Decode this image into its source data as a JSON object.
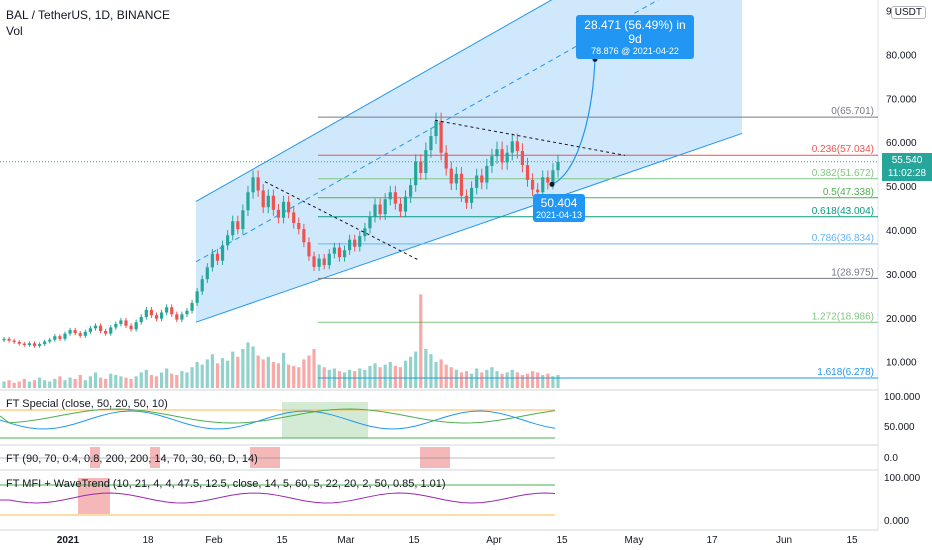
{
  "header": {
    "symbol_line": "BAL / TetherUS, 1D, BINANCE",
    "volume_label": "Vol",
    "currency_button": "USDT"
  },
  "colors": {
    "up": "#26a69a",
    "down": "#ef5350",
    "channel_fill": "#bbdefb",
    "channel_line": "#2196f3",
    "callout": "#2196f3"
  },
  "last_price": {
    "value": "55.540",
    "countdown": "11:02:28"
  },
  "callouts": {
    "target": {
      "line1": "28.471 (56.49%) in 9d",
      "line2": "78.876 @ 2021-04-22"
    },
    "entry": {
      "line1": "50.404",
      "line2": "2021-04-13"
    }
  },
  "indicators": {
    "ind1": "FT Special (close, 50, 20, 50, 10)",
    "ind2": "FT (90, 70, 0.4, 0.8, 200, 200, 14, 70, 30, 60, D, 14)",
    "ind3": "FT MFI + WaveTrend (10, 21, 4, 4, 47.5, 12.5, close, 14, 5, 60, 5, 22, 20, 2, 50, 0.85, 1.01)"
  },
  "price_axis_ticks": [
    "90",
    "80.000",
    "70.000",
    "60.000",
    "50.000",
    "40.000",
    "30.000",
    "20.000",
    "10.000"
  ],
  "ind_axis_ticks": {
    "ind1": [
      "100.000",
      "50.000"
    ],
    "ind2": [
      "0.0"
    ],
    "ind3": [
      "100.000",
      "0.000"
    ]
  },
  "time_axis": [
    "2021",
    "18",
    "Feb",
    "15",
    "Mar",
    "15",
    "Apr",
    "15",
    "May",
    "17",
    "Jun",
    "15"
  ],
  "chart_data": {
    "type": "candlestick",
    "fib_levels": [
      {
        "ratio": "0",
        "price": 65.701,
        "label": "0(65.701)",
        "color": "#787b86"
      },
      {
        "ratio": "0.236",
        "price": 57.034,
        "label": "0.236(57.034)",
        "color": "#ef5350"
      },
      {
        "ratio": "0.382",
        "price": 51.672,
        "label": "0.382(51.672)",
        "color": "#81c784"
      },
      {
        "ratio": "0.5",
        "price": 47.338,
        "label": "0.5(47.338)",
        "color": "#4caf50"
      },
      {
        "ratio": "0.618",
        "price": 43.004,
        "label": "0.618(43.004)",
        "color": "#089981"
      },
      {
        "ratio": "0.786",
        "price": 36.834,
        "label": "0.786(36.834)",
        "color": "#64b5f6"
      },
      {
        "ratio": "1",
        "price": 28.975,
        "label": "1(28.975)",
        "color": "#787b86"
      },
      {
        "ratio": "1.272",
        "price": 18.986,
        "label": "1.272(18.986)",
        "color": "#81c784"
      },
      {
        "ratio": "1.618",
        "price": 6.278,
        "label": "1.618(6.278)",
        "color": "#2196f3"
      }
    ],
    "projection": {
      "from_price": 50.404,
      "from_date": "2021-04-13",
      "to_price": 78.876,
      "to_date": "2021-04-22",
      "change": 28.471,
      "change_pct": 56.49,
      "days": 9
    },
    "closes": [
      15.2,
      14.8,
      14.5,
      14.1,
      13.8,
      14.2,
      13.6,
      14.0,
      14.6,
      15.0,
      15.8,
      15.2,
      16.4,
      17.2,
      16.5,
      15.9,
      16.8,
      17.6,
      18.2,
      17.0,
      16.4,
      17.8,
      18.6,
      19.4,
      18.2,
      17.4,
      19.0,
      20.2,
      21.8,
      20.6,
      19.8,
      21.2,
      22.4,
      20.8,
      19.6,
      20.8,
      21.6,
      23.4,
      26.0,
      28.8,
      31.5,
      34.6,
      33.0,
      36.5,
      38.8,
      42.0,
      40.2,
      44.5,
      48.6,
      52.0,
      49.0,
      45.2,
      47.8,
      44.6,
      42.8,
      46.4,
      44.0,
      41.6,
      40.2,
      37.2,
      34.0,
      31.6,
      33.5,
      32.0,
      34.6,
      36.0,
      33.8,
      35.4,
      37.8,
      36.2,
      38.6,
      40.4,
      43.0,
      45.8,
      43.6,
      47.0,
      48.6,
      46.0,
      44.2,
      47.6,
      50.2,
      55.6,
      53.0,
      58.2,
      61.4,
      64.8,
      57.6,
      54.0,
      50.6,
      52.8,
      47.8,
      46.2,
      49.6,
      52.4,
      50.8,
      54.6,
      56.8,
      58.4,
      55.4,
      57.6,
      60.2,
      58.0,
      54.8,
      51.4,
      49.2,
      48.6,
      52.0,
      50.8,
      53.6,
      55.5
    ],
    "volumes": [
      5,
      6,
      4,
      5,
      7,
      5,
      6,
      8,
      6,
      5,
      7,
      9,
      6,
      8,
      7,
      10,
      6,
      9,
      12,
      8,
      7,
      11,
      10,
      9,
      8,
      7,
      9,
      12,
      14,
      10,
      9,
      12,
      15,
      11,
      10,
      13,
      12,
      16,
      20,
      18,
      22,
      26,
      19,
      23,
      21,
      28,
      24,
      30,
      35,
      32,
      25,
      22,
      24,
      20,
      19,
      27,
      18,
      17,
      16,
      22,
      25,
      30,
      18,
      16,
      14,
      15,
      13,
      12,
      14,
      13,
      15,
      14,
      17,
      19,
      16,
      18,
      20,
      17,
      16,
      21,
      24,
      28,
      72,
      30,
      26,
      20,
      22,
      18,
      16,
      14,
      12,
      13,
      11,
      15,
      12,
      14,
      16,
      13,
      11,
      12,
      14,
      12,
      10,
      11,
      13,
      12,
      10,
      11,
      9,
      10
    ]
  }
}
